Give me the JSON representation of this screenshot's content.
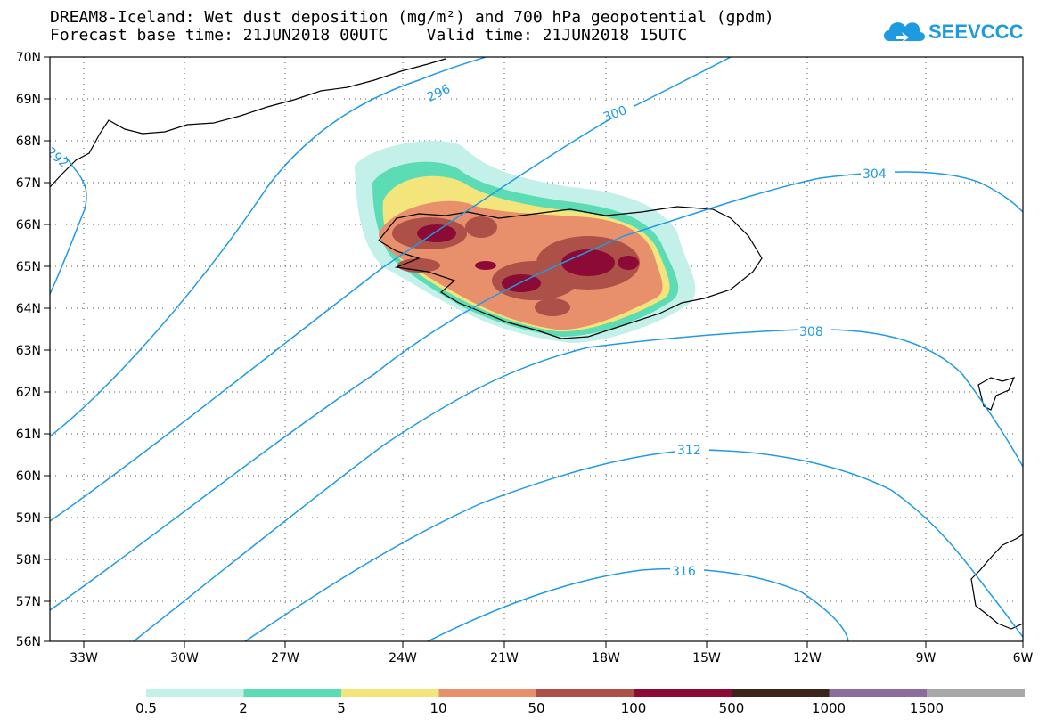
{
  "header": {
    "line1": "DREAM8-Iceland: Wet dust deposition (mg/m²) and 700 hPa geopotential (gpdm)",
    "line2": "Forecast base time: 21JUN2018 00UTC    Valid time: 21JUN2018 15UTC"
  },
  "logo": {
    "text": "SEEVCCC"
  },
  "axes": {
    "lat_labels": [
      "70N",
      "69N",
      "68N",
      "67N",
      "66N",
      "65N",
      "64N",
      "63N",
      "62N",
      "61N",
      "60N",
      "59N",
      "58N",
      "57N",
      "56N"
    ],
    "lon_labels": [
      "33W",
      "30W",
      "27W",
      "24W",
      "21W",
      "18W",
      "15W",
      "12W",
      "9W",
      "6W"
    ]
  },
  "contour_labels": [
    "292",
    "296",
    "300",
    "304",
    "308",
    "312",
    "316"
  ],
  "legend": {
    "labels": [
      "0.5",
      "2",
      "5",
      "10",
      "50",
      "100",
      "500",
      "1000",
      "1500"
    ],
    "colors": [
      "#c4f0ea",
      "#5cdcb4",
      "#f4e47c",
      "#e8906c",
      "#ac5048",
      "#8c0a36",
      "#3c2418",
      "#8c6c9c",
      "#a8a8a8"
    ]
  }
}
